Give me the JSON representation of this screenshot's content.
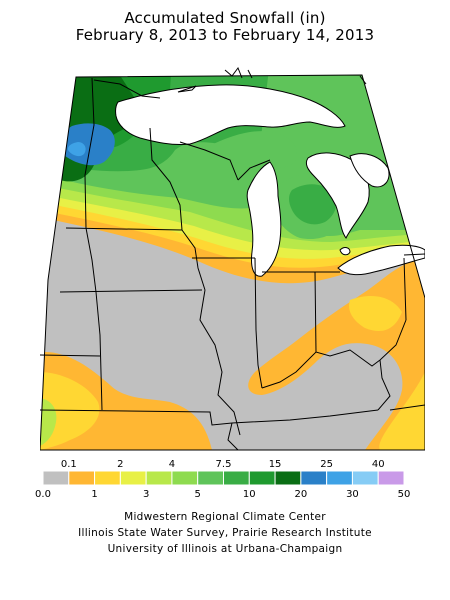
{
  "title": {
    "line1": "Accumulated Snowfall (in)",
    "line2": "February 8, 2013 to February 14, 2013"
  },
  "legend": {
    "upper_labels": [
      "0.1",
      "2",
      "4",
      "7.5",
      "15",
      "25",
      "40"
    ],
    "lower_labels": [
      "0.0",
      "1",
      "3",
      "5",
      "10",
      "20",
      "30",
      "50"
    ],
    "bins": [
      {
        "from": "0.0",
        "to": "0.1",
        "color": "#c0c0c0"
      },
      {
        "from": "0.1",
        "to": "1",
        "color": "#ffb733"
      },
      {
        "from": "1",
        "to": "2",
        "color": "#ffd733"
      },
      {
        "from": "2",
        "to": "3",
        "color": "#e8f046"
      },
      {
        "from": "3",
        "to": "4",
        "color": "#b8e84a"
      },
      {
        "from": "4",
        "to": "5",
        "color": "#8edb4f"
      },
      {
        "from": "5",
        "to": "7.5",
        "color": "#5fc45a"
      },
      {
        "from": "7.5",
        "to": "10",
        "color": "#39ad45"
      },
      {
        "from": "10",
        "to": "15",
        "color": "#1f9a2f"
      },
      {
        "from": "15",
        "to": "20",
        "color": "#0a6e14"
      },
      {
        "from": "20",
        "to": "25",
        "color": "#2a80c8"
      },
      {
        "from": "25",
        "to": "30",
        "color": "#3ea2e6"
      },
      {
        "from": "30",
        "to": "40",
        "color": "#86ccf5"
      },
      {
        "from": "40",
        "to": "50",
        "color": "#c99ae8"
      }
    ]
  },
  "credits": {
    "line1": "Midwestern Regional Climate Center",
    "line2": "Illinois State Water Survey, Prairie Research Institute",
    "line3": "University of Illinois at Urbana-Champaign"
  },
  "map_colors": {
    "trace": "#c0c0c0",
    "light": "#ffb733",
    "water": "#ffffff",
    "border": "#000000"
  }
}
